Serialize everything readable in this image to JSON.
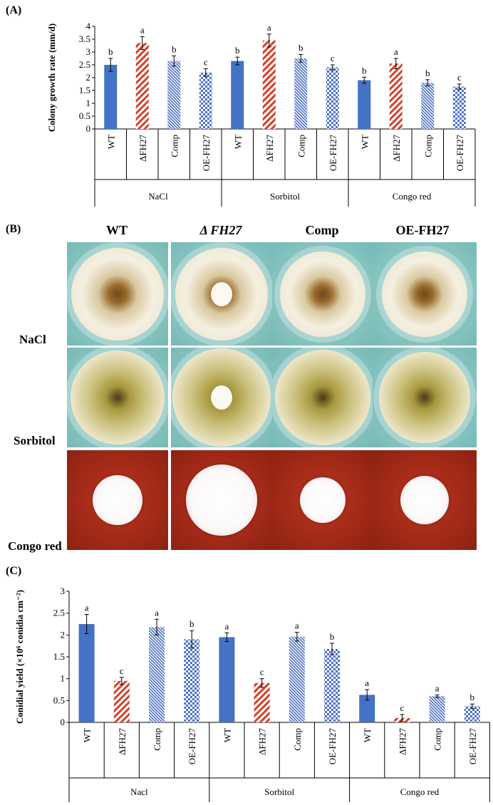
{
  "panels": {
    "a": {
      "label": "(A)"
    },
    "b": {
      "label": "(B)"
    },
    "c": {
      "label": "(C)"
    }
  },
  "panel_b": {
    "columns": [
      "WT",
      "Δ FH27",
      "Comp",
      "OE-FH27"
    ],
    "rows": [
      "NaCl",
      "Sorbitol",
      "Congo red"
    ],
    "colors": {
      "plate_teal": "#8cc7c2",
      "plate_red": "#a32a18",
      "mycelium": "#f3efe2",
      "center_brown": "#6b4a1e"
    }
  },
  "chart_data": [
    {
      "type": "bar",
      "title": "",
      "ylabel": "Colony growth rate (mm/d)",
      "xlabel": "",
      "ylim": [
        0,
        4
      ],
      "yticks": [
        0,
        0.5,
        1,
        1.5,
        2,
        2.5,
        3,
        3.5,
        4
      ],
      "ytick_labels": [
        "0",
        "0.5",
        "1",
        "1.5",
        "2",
        "2.5",
        "3",
        "3.5",
        "4"
      ],
      "categories": [
        "WT",
        "ΔFH27",
        "Comp",
        "OE-FH27"
      ],
      "groups": [
        "NaCl",
        "Sorbitol",
        "Congo red"
      ],
      "values": [
        [
          2.5,
          3.35,
          2.65,
          2.2
        ],
        [
          2.65,
          3.45,
          2.75,
          2.4
        ],
        [
          1.9,
          2.55,
          1.8,
          1.65
        ]
      ],
      "errors": [
        [
          0.25,
          0.25,
          0.2,
          0.15
        ],
        [
          0.15,
          0.25,
          0.15,
          0.1
        ],
        [
          0.12,
          0.2,
          0.12,
          0.1
        ]
      ],
      "significance": [
        [
          "b",
          "a",
          "b",
          "c"
        ],
        [
          "b",
          "a",
          "b",
          "c"
        ],
        [
          "b",
          "a",
          "b",
          "c"
        ]
      ],
      "series_styles": [
        "solid",
        "diagonal",
        "hatch",
        "checker"
      ]
    },
    {
      "type": "bar",
      "title": "",
      "ylabel": "Conidial yield (×10⁶ conidia cm⁻²)",
      "xlabel": "",
      "ylim": [
        0,
        3
      ],
      "yticks": [
        0,
        0.5,
        1,
        1.5,
        2,
        2.5,
        3
      ],
      "ytick_labels": [
        "0",
        "0.5",
        "1",
        "1.5",
        "2",
        "2.5",
        "3"
      ],
      "categories": [
        "WT",
        "ΔFH27",
        "Comp",
        "OE-FH27"
      ],
      "groups": [
        "Nacl",
        "Sorbitol",
        "Congo red"
      ],
      "values": [
        [
          2.25,
          0.95,
          2.18,
          1.9
        ],
        [
          1.95,
          0.9,
          1.96,
          1.68
        ],
        [
          0.63,
          0.1,
          0.6,
          0.37
        ]
      ],
      "errors": [
        [
          0.22,
          0.08,
          0.18,
          0.2
        ],
        [
          0.1,
          0.1,
          0.1,
          0.13
        ],
        [
          0.12,
          0.08,
          0.03,
          0.05
        ]
      ],
      "significance": [
        [
          "a",
          "c",
          "a",
          "b"
        ],
        [
          "a",
          "c",
          "a",
          "b"
        ],
        [
          "a",
          "c",
          "a",
          "b"
        ]
      ],
      "series_styles": [
        "solid",
        "diagonal",
        "hatch",
        "checker"
      ]
    }
  ]
}
